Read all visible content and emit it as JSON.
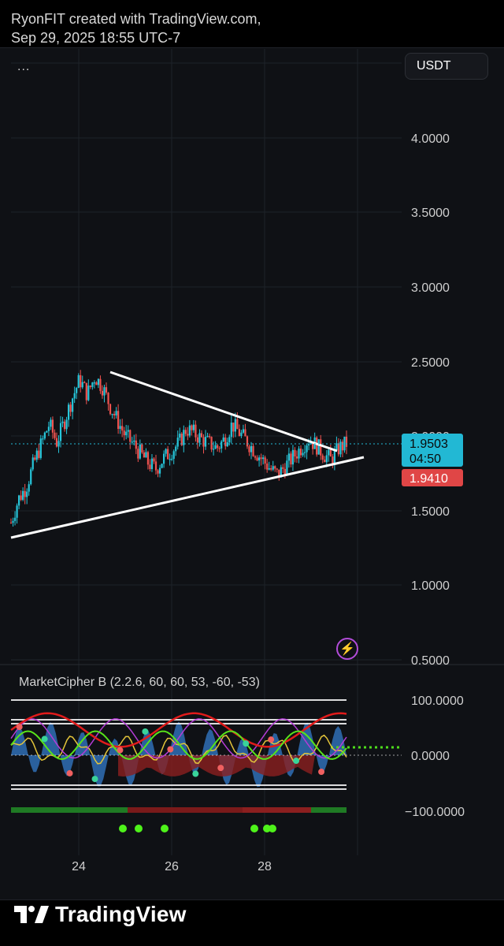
{
  "header": {
    "line1": "RyonFIT created with TradingView.com,",
    "line2": "Sep 29, 2025 18:55 UTC-7"
  },
  "toolbar": {
    "more_label": "...",
    "unit": "USDT"
  },
  "price_axis": {
    "ticks": [
      "4.0000",
      "3.5000",
      "3.0000",
      "2.5000",
      "2.0000",
      "1.5000",
      "1.0000",
      "0.5000"
    ]
  },
  "price_labels": {
    "last": "1.9503",
    "countdown": "04:50",
    "open": "1.9410"
  },
  "indicator": {
    "title": "MarketCipher B (2.2.6, 60, 60, 53, -60, -53)",
    "ticks": [
      "100.0000",
      "0.0000",
      "−100.0000"
    ]
  },
  "time_axis": {
    "ticks": [
      "24",
      "26",
      "28"
    ]
  },
  "footer": {
    "brand": "TradingView",
    "logo_icon": "tradingview-logo-icon",
    "alert_icon": "lightning-icon"
  },
  "colors": {
    "up": "#26c6da",
    "down": "#ef5350",
    "bg": "#0f1115",
    "last_price": "#22b8d4",
    "open_price": "#e04646"
  },
  "chart_data": [
    {
      "type": "candlestick",
      "title": "",
      "ylim": [
        0.5,
        4.2
      ],
      "x_ticks": [
        "24",
        "26",
        "28"
      ],
      "close_series": [
        1.42,
        1.58,
        1.66,
        1.82,
        1.95,
        2.08,
        1.96,
        2.1,
        2.25,
        2.38,
        2.28,
        2.4,
        2.33,
        2.2,
        2.1,
        2.0,
        1.95,
        1.88,
        1.82,
        1.78,
        1.85,
        1.9,
        1.95,
        2.05,
        2.02,
        1.98,
        1.95,
        1.92,
        1.98,
        2.08,
        2.02,
        1.96,
        1.9,
        1.84,
        1.78,
        1.74,
        1.8,
        1.86,
        1.92,
        1.98,
        1.94,
        1.88,
        1.84,
        1.92,
        1.95
      ],
      "trendlines": [
        {
          "name": "",
          "from": [
            24.7,
            2.42
          ],
          "to": [
            29.5,
            1.9
          ]
        },
        {
          "name": "",
          "from": [
            22.6,
            1.3
          ],
          "to": [
            30.4,
            1.84
          ]
        }
      ],
      "last_price": 1.9503,
      "open_price": 1.941
    },
    {
      "type": "line",
      "title": "MarketCipher B (2.2.6, 60, 60, 53, -60, -53)",
      "ylim": [
        -100,
        100
      ],
      "levels": [
        100,
        60,
        53,
        0,
        -53,
        -60
      ],
      "signal_dots": [
        3,
        4,
        6,
        17,
        18,
        19
      ]
    }
  ]
}
